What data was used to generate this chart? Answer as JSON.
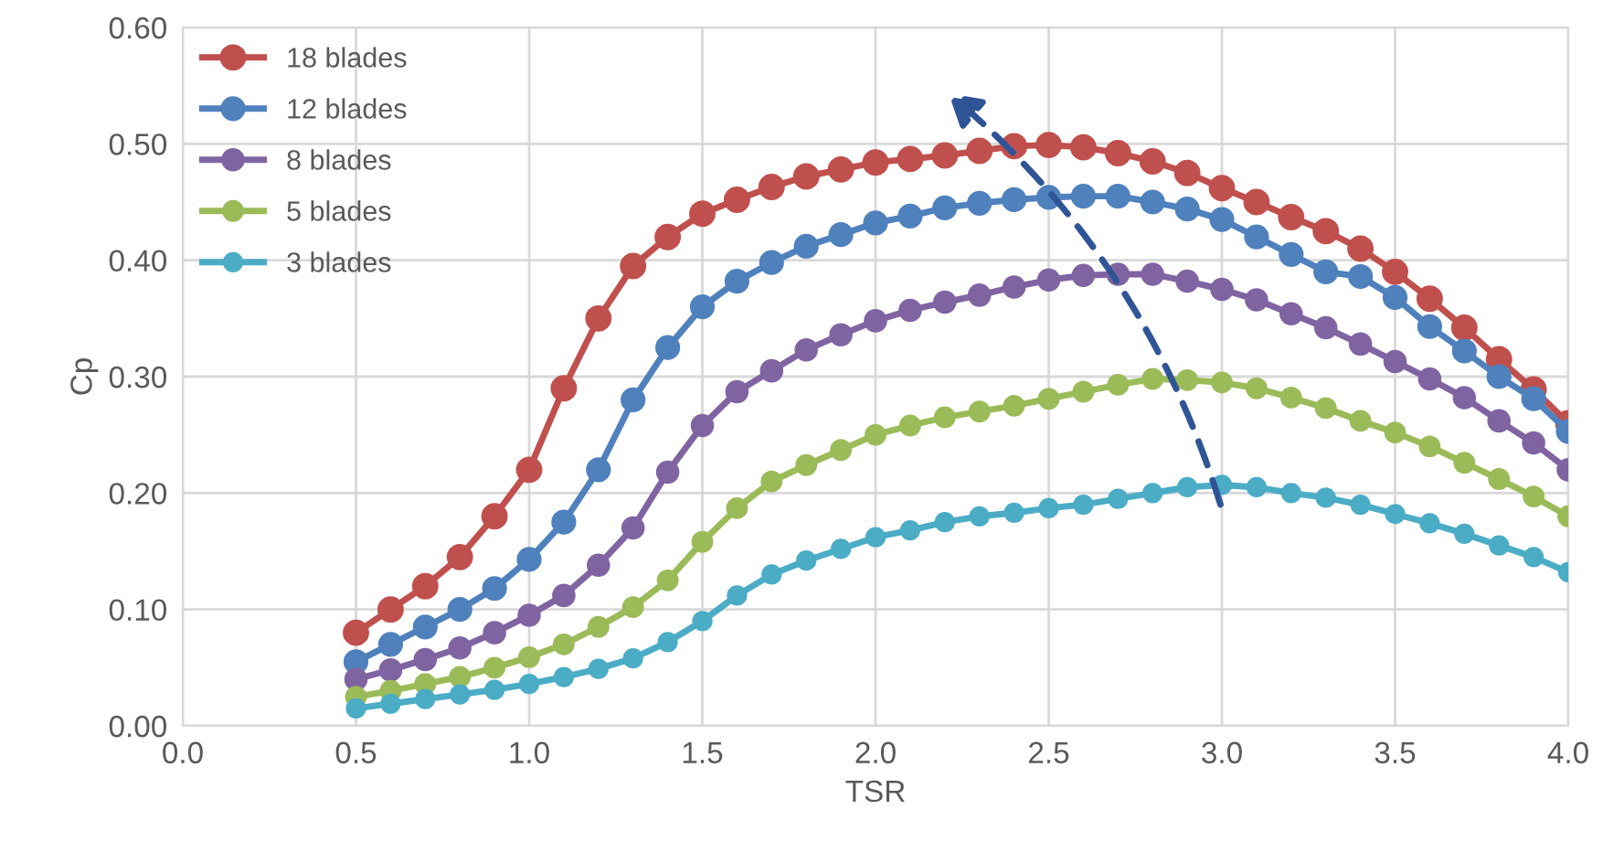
{
  "chart_data": {
    "type": "line",
    "xlabel": "TSR",
    "ylabel": "Cp",
    "x": [
      0.5,
      0.6,
      0.7,
      0.8,
      0.9,
      1.0,
      1.1,
      1.2,
      1.3,
      1.4,
      1.5,
      1.6,
      1.7,
      1.8,
      1.9,
      2.0,
      2.1,
      2.2,
      2.3,
      2.4,
      2.5,
      2.6,
      2.7,
      2.8,
      2.9,
      3.0,
      3.1,
      3.2,
      3.3,
      3.4,
      3.5,
      3.6,
      3.7,
      3.8,
      3.9,
      4.0
    ],
    "series": [
      {
        "name": "18 blades",
        "color": "#c0504d",
        "values": [
          0.08,
          0.1,
          0.12,
          0.145,
          0.18,
          0.22,
          0.29,
          0.35,
          0.395,
          0.42,
          0.44,
          0.452,
          0.463,
          0.472,
          0.478,
          0.484,
          0.487,
          0.49,
          0.494,
          0.498,
          0.499,
          0.497,
          0.492,
          0.485,
          0.475,
          0.462,
          0.45,
          0.437,
          0.425,
          0.41,
          0.39,
          0.367,
          0.342,
          0.315,
          0.289,
          0.26
        ]
      },
      {
        "name": "12 blades",
        "color": "#4f81bd",
        "values": [
          0.055,
          0.07,
          0.085,
          0.1,
          0.118,
          0.143,
          0.175,
          0.22,
          0.28,
          0.325,
          0.36,
          0.382,
          0.398,
          0.412,
          0.422,
          0.432,
          0.438,
          0.445,
          0.449,
          0.452,
          0.454,
          0.455,
          0.455,
          0.45,
          0.444,
          0.435,
          0.42,
          0.405,
          0.39,
          0.386,
          0.368,
          0.343,
          0.322,
          0.3,
          0.281,
          0.253
        ]
      },
      {
        "name": "8 blades",
        "color": "#8064a2",
        "values": [
          0.04,
          0.048,
          0.057,
          0.067,
          0.08,
          0.095,
          0.112,
          0.138,
          0.17,
          0.218,
          0.258,
          0.287,
          0.305,
          0.323,
          0.336,
          0.348,
          0.357,
          0.364,
          0.37,
          0.377,
          0.383,
          0.387,
          0.388,
          0.388,
          0.382,
          0.375,
          0.366,
          0.354,
          0.342,
          0.328,
          0.313,
          0.298,
          0.282,
          0.262,
          0.243,
          0.22
        ]
      },
      {
        "name": "5 blades",
        "color": "#9bbb59",
        "values": [
          0.025,
          0.03,
          0.036,
          0.042,
          0.05,
          0.059,
          0.07,
          0.085,
          0.102,
          0.125,
          0.158,
          0.187,
          0.21,
          0.224,
          0.237,
          0.25,
          0.258,
          0.265,
          0.27,
          0.275,
          0.281,
          0.287,
          0.293,
          0.298,
          0.297,
          0.295,
          0.29,
          0.282,
          0.273,
          0.262,
          0.252,
          0.24,
          0.226,
          0.212,
          0.197,
          0.18
        ]
      },
      {
        "name": "3 blades",
        "color": "#4bacc6",
        "values": [
          0.015,
          0.019,
          0.023,
          0.027,
          0.031,
          0.036,
          0.042,
          0.049,
          0.058,
          0.072,
          0.09,
          0.112,
          0.13,
          0.142,
          0.152,
          0.162,
          0.168,
          0.175,
          0.18,
          0.183,
          0.187,
          0.19,
          0.195,
          0.2,
          0.205,
          0.207,
          0.205,
          0.2,
          0.196,
          0.19,
          0.182,
          0.174,
          0.165,
          0.155,
          0.145,
          0.132
        ]
      }
    ],
    "xlim": [
      0.0,
      4.0
    ],
    "xticks": [
      {
        "value": 0.0,
        "label": "0.0"
      },
      {
        "value": 0.5,
        "label": "0.5"
      },
      {
        "value": 1.0,
        "label": "1.0"
      },
      {
        "value": 1.5,
        "label": "1.5"
      },
      {
        "value": 2.0,
        "label": "2.0"
      },
      {
        "value": 2.5,
        "label": "2.5"
      },
      {
        "value": 3.0,
        "label": "3.0"
      },
      {
        "value": 3.5,
        "label": "3.5"
      },
      {
        "value": 4.0,
        "label": "4.0"
      }
    ],
    "ylim": [
      0.0,
      0.6
    ],
    "yticks": [
      {
        "value": 0.0,
        "label": "0.00"
      },
      {
        "value": 0.1,
        "label": "0.10"
      },
      {
        "value": 0.2,
        "label": "0.20"
      },
      {
        "value": 0.3,
        "label": "0.30"
      },
      {
        "value": 0.4,
        "label": "0.40"
      },
      {
        "value": 0.5,
        "label": "0.50"
      },
      {
        "value": 0.6,
        "label": "0.60"
      }
    ],
    "grid": true,
    "legend": "top left",
    "marker": "circle",
    "line_style": "solid"
  }
}
